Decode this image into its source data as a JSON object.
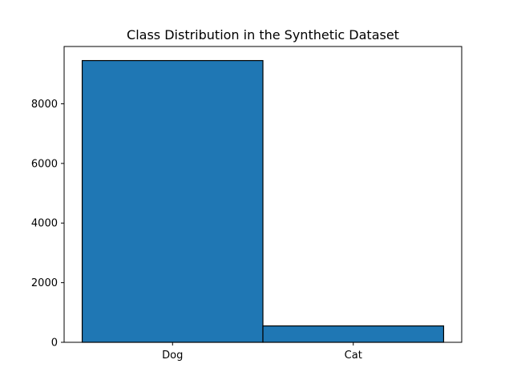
{
  "chart_data": {
    "type": "bar",
    "title": "Class Distribution in the Synthetic Dataset",
    "xlabel": "",
    "ylabel": "",
    "categories": [
      "Dog",
      "Cat"
    ],
    "values": [
      9450,
      550
    ],
    "ylim": [
      0,
      9922
    ],
    "yticks": [
      0,
      2000,
      4000,
      6000,
      8000
    ],
    "grid": false,
    "legend": "none",
    "colors": {
      "bar_fill": "#1f77b4",
      "bar_edge": "#000000",
      "axes": "#000000",
      "background": "#ffffff"
    }
  }
}
